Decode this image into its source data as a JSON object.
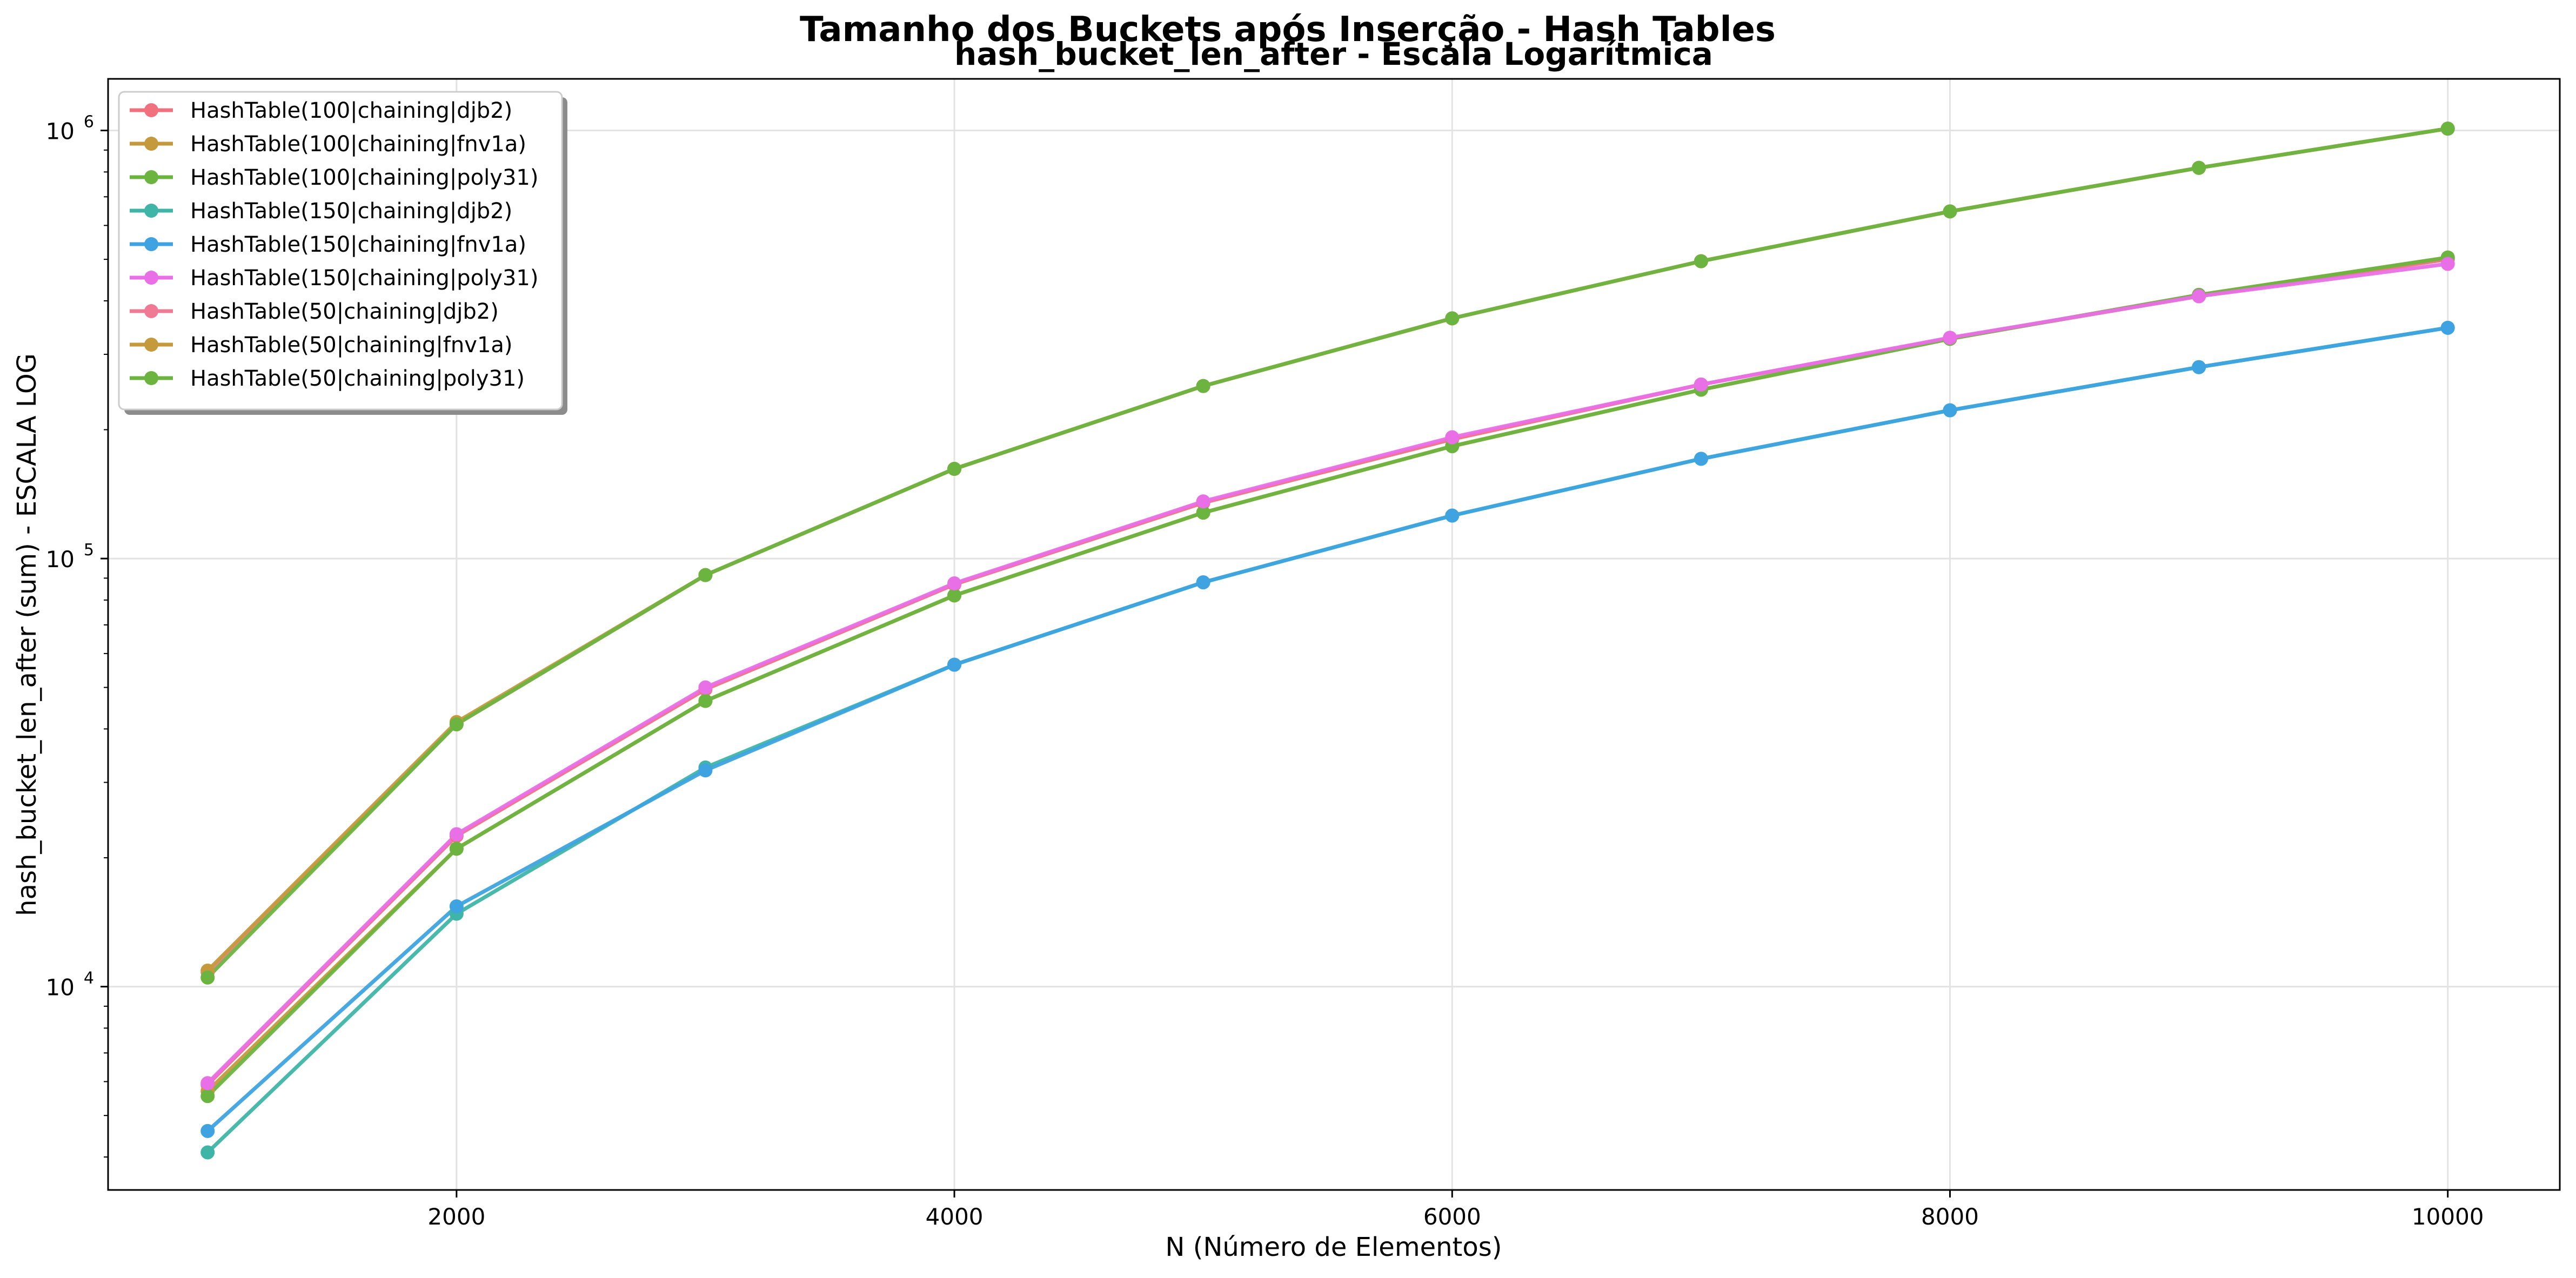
{
  "chart_data": {
    "type": "line",
    "title": "Tamanho dos Buckets após Inserção - Hash Tables",
    "subtitle": "hash_bucket_len_after - Escala Logarítmica",
    "xlabel": "N (Número de Elementos)",
    "ylabel": "hash_bucket_len_after (sum) - ESCALA LOG",
    "xlim": [
      600,
      10450
    ],
    "ylim": [
      3350,
      1320000
    ],
    "yscale": "log",
    "grid": true,
    "legend_position": "upper-left",
    "x_ticks": [
      {
        "value": 2000,
        "label": "2000"
      },
      {
        "value": 4000,
        "label": "4000"
      },
      {
        "value": 6000,
        "label": "6000"
      },
      {
        "value": 8000,
        "label": "8000"
      },
      {
        "value": 10000,
        "label": "10000"
      }
    ],
    "y_ticks": [
      {
        "value": 10000,
        "base": "10",
        "exp": "4"
      },
      {
        "value": 100000,
        "base": "10",
        "exp": "5"
      },
      {
        "value": 1000000,
        "base": "10",
        "exp": "6"
      }
    ],
    "x": [
      1000,
      2000,
      3000,
      4000,
      5000,
      6000,
      7000,
      8000,
      9000,
      10000
    ],
    "series": [
      {
        "name": "HashTable(100|chaining|djb2)",
        "color": "#f0707e",
        "values": [
          5900,
          22500,
          49500,
          87000,
          135000,
          190000,
          255000,
          327000,
          410000,
          500000
        ]
      },
      {
        "name": "HashTable(100|chaining|fnv1a)",
        "color": "#c59a3c",
        "values": [
          5700,
          21000,
          46500,
          82000,
          128000,
          183000,
          248000,
          326000,
          413000,
          505000
        ]
      },
      {
        "name": "HashTable(100|chaining|poly31)",
        "color": "#6bb440",
        "values": [
          5550,
          21000,
          46500,
          82000,
          128000,
          183000,
          248000,
          326000,
          413000,
          505000
        ]
      },
      {
        "name": "HashTable(150|chaining|djb2)",
        "color": "#3fb5a8",
        "values": [
          4100,
          14800,
          32500,
          56500,
          88000,
          126000,
          171000,
          222000,
          280000,
          346000
        ]
      },
      {
        "name": "HashTable(150|chaining|fnv1a)",
        "color": "#3ea3e0",
        "values": [
          4600,
          15400,
          32000,
          56500,
          88000,
          126000,
          171000,
          222000,
          280000,
          346000
        ]
      },
      {
        "name": "HashTable(150|chaining|poly31)",
        "color": "#e96fe7",
        "values": [
          5950,
          22700,
          50000,
          87500,
          136000,
          192000,
          255000,
          328000,
          410000,
          488000
        ]
      },
      {
        "name": "HashTable(50|chaining|djb2)",
        "color": "#f07a93",
        "values": [
          10800,
          41000,
          91500,
          162000,
          253000,
          364000,
          495000,
          647000,
          818000,
          1010000
        ]
      },
      {
        "name": "HashTable(50|chaining|fnv1a)",
        "color": "#c59a3c",
        "values": [
          10900,
          41500,
          91500,
          162000,
          253000,
          364000,
          495000,
          647000,
          818000,
          1010000
        ]
      },
      {
        "name": "HashTable(50|chaining|poly31)",
        "color": "#6bb440",
        "values": [
          10500,
          41000,
          91500,
          162000,
          253000,
          364000,
          495000,
          647000,
          818000,
          1010000
        ]
      }
    ]
  }
}
